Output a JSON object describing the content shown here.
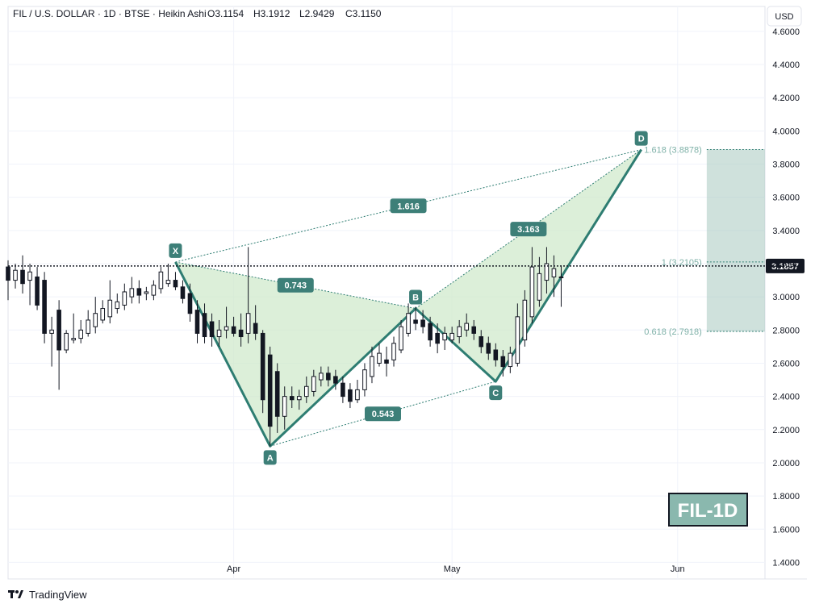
{
  "header": {
    "symbol_line": "FIL / U.S. DOLLAR · 1D · BTSE · Heikin Ashi",
    "ohlc": [
      {
        "label": "O",
        "value": "3.1154"
      },
      {
        "label": "H",
        "value": "3.1912"
      },
      {
        "label": "L",
        "value": "2.9429"
      },
      {
        "label": "C",
        "value": "3.1150"
      }
    ]
  },
  "currency_button": "USD",
  "watermark": "FIL-1D",
  "footer_brand": "TradingView",
  "colors": {
    "candle": "#131722",
    "pattern_stroke": "#2e7d72",
    "pattern_fill": "#cde8c9",
    "label_bg": "#3d7f78",
    "zone_fill": "#a7c9c0",
    "fib_text": "#7fb1a8",
    "price_tag_bg": "#131722",
    "watermark_bg": "#8ab8ae"
  },
  "chart_data": {
    "type": "candlestick",
    "style": "Heikin Ashi",
    "price_axis": {
      "ylim": [
        1.3,
        4.75
      ],
      "ticks": [
        "4.6000",
        "4.4000",
        "4.2000",
        "4.0000",
        "3.8000",
        "3.6000",
        "3.4000",
        "3.2000",
        "3.0000",
        "2.8000",
        "2.6000",
        "2.4000",
        "2.2000",
        "2.0000",
        "1.8000",
        "1.6000",
        "1.4000"
      ]
    },
    "time_axis": {
      "xlim": [
        "2024-03-01",
        "2024-06-13"
      ],
      "ticks": [
        {
          "label": "Apr",
          "date": "2024-04-01"
        },
        {
          "label": "May",
          "date": "2024-05-01"
        },
        {
          "label": "Jun",
          "date": "2024-06-01"
        }
      ]
    },
    "current_price": {
      "value": 3.1857,
      "label": "3.1857"
    },
    "candles": [
      {
        "date": "2024-03-01",
        "o": 3.18,
        "h": 3.22,
        "l": 2.98,
        "c": 3.1
      },
      {
        "date": "2024-03-02",
        "o": 3.1,
        "h": 3.2,
        "l": 3.05,
        "c": 3.16
      },
      {
        "date": "2024-03-03",
        "o": 3.16,
        "h": 3.25,
        "l": 3.02,
        "c": 3.08
      },
      {
        "date": "2024-03-04",
        "o": 3.1,
        "h": 3.2,
        "l": 2.95,
        "c": 3.15
      },
      {
        "date": "2024-03-05",
        "o": 3.12,
        "h": 3.18,
        "l": 2.92,
        "c": 2.95
      },
      {
        "date": "2024-03-06",
        "o": 3.1,
        "h": 3.15,
        "l": 2.72,
        "c": 2.78
      },
      {
        "date": "2024-03-07",
        "o": 2.78,
        "h": 2.88,
        "l": 2.58,
        "c": 2.8
      },
      {
        "date": "2024-03-08",
        "o": 2.92,
        "h": 2.98,
        "l": 2.44,
        "c": 2.68
      },
      {
        "date": "2024-03-09",
        "o": 2.68,
        "h": 2.8,
        "l": 2.66,
        "c": 2.78
      },
      {
        "date": "2024-03-10",
        "o": 2.74,
        "h": 2.9,
        "l": 2.72,
        "c": 2.75
      },
      {
        "date": "2024-03-11",
        "o": 2.75,
        "h": 2.86,
        "l": 2.72,
        "c": 2.8
      },
      {
        "date": "2024-03-12",
        "o": 2.78,
        "h": 2.92,
        "l": 2.76,
        "c": 2.86
      },
      {
        "date": "2024-03-13",
        "o": 2.82,
        "h": 3.0,
        "l": 2.78,
        "c": 2.9
      },
      {
        "date": "2024-03-14",
        "o": 2.86,
        "h": 2.98,
        "l": 2.84,
        "c": 2.93
      },
      {
        "date": "2024-03-15",
        "o": 2.88,
        "h": 3.1,
        "l": 2.84,
        "c": 2.98
      },
      {
        "date": "2024-03-16",
        "o": 2.93,
        "h": 3.02,
        "l": 2.9,
        "c": 2.97
      },
      {
        "date": "2024-03-17",
        "o": 2.95,
        "h": 3.08,
        "l": 2.92,
        "c": 3.03
      },
      {
        "date": "2024-03-18",
        "o": 3.0,
        "h": 3.12,
        "l": 2.96,
        "c": 3.05
      },
      {
        "date": "2024-03-19",
        "o": 3.05,
        "h": 3.1,
        "l": 2.96,
        "c": 3.01
      },
      {
        "date": "2024-03-20",
        "o": 3.02,
        "h": 3.06,
        "l": 2.98,
        "c": 3.03
      },
      {
        "date": "2024-03-21",
        "o": 3.01,
        "h": 3.1,
        "l": 2.98,
        "c": 3.07
      },
      {
        "date": "2024-03-22",
        "o": 3.05,
        "h": 3.18,
        "l": 3.02,
        "c": 3.15
      },
      {
        "date": "2024-03-23",
        "o": 3.08,
        "h": 3.2,
        "l": 3.06,
        "c": 3.1
      },
      {
        "date": "2024-03-24",
        "o": 3.1,
        "h": 3.15,
        "l": 3.04,
        "c": 3.06
      },
      {
        "date": "2024-03-25",
        "o": 3.06,
        "h": 3.1,
        "l": 2.96,
        "c": 2.99
      },
      {
        "date": "2024-03-26",
        "o": 3.02,
        "h": 3.08,
        "l": 2.85,
        "c": 2.9
      },
      {
        "date": "2024-03-27",
        "o": 2.92,
        "h": 2.98,
        "l": 2.72,
        "c": 2.78
      },
      {
        "date": "2024-03-28",
        "o": 2.9,
        "h": 2.96,
        "l": 2.72,
        "c": 2.76
      },
      {
        "date": "2024-03-29",
        "o": 2.85,
        "h": 2.9,
        "l": 2.7,
        "c": 2.76
      },
      {
        "date": "2024-03-30",
        "o": 2.76,
        "h": 2.86,
        "l": 2.7,
        "c": 2.8
      },
      {
        "date": "2024-03-31",
        "o": 2.8,
        "h": 2.94,
        "l": 2.75,
        "c": 2.82
      },
      {
        "date": "2024-04-01",
        "o": 2.82,
        "h": 2.88,
        "l": 2.76,
        "c": 2.78
      },
      {
        "date": "2024-04-02",
        "o": 2.8,
        "h": 2.9,
        "l": 2.7,
        "c": 2.76
      },
      {
        "date": "2024-04-03",
        "o": 2.78,
        "h": 3.3,
        "l": 2.72,
        "c": 2.9
      },
      {
        "date": "2024-04-04",
        "o": 2.84,
        "h": 2.95,
        "l": 2.74,
        "c": 2.78
      },
      {
        "date": "2024-04-05",
        "o": 2.78,
        "h": 2.8,
        "l": 2.3,
        "c": 2.38
      },
      {
        "date": "2024-04-06",
        "o": 2.65,
        "h": 2.7,
        "l": 2.1,
        "c": 2.22
      },
      {
        "date": "2024-04-07",
        "o": 2.55,
        "h": 2.6,
        "l": 2.18,
        "c": 2.28
      },
      {
        "date": "2024-04-08",
        "o": 2.28,
        "h": 2.46,
        "l": 2.2,
        "c": 2.4
      },
      {
        "date": "2024-04-09",
        "o": 2.4,
        "h": 2.46,
        "l": 2.33,
        "c": 2.38
      },
      {
        "date": "2024-04-10",
        "o": 2.38,
        "h": 2.44,
        "l": 2.32,
        "c": 2.4
      },
      {
        "date": "2024-04-11",
        "o": 2.4,
        "h": 2.52,
        "l": 2.36,
        "c": 2.46
      },
      {
        "date": "2024-04-12",
        "o": 2.43,
        "h": 2.56,
        "l": 2.4,
        "c": 2.52
      },
      {
        "date": "2024-04-13",
        "o": 2.5,
        "h": 2.58,
        "l": 2.46,
        "c": 2.54
      },
      {
        "date": "2024-04-14",
        "o": 2.54,
        "h": 2.58,
        "l": 2.46,
        "c": 2.5
      },
      {
        "date": "2024-04-15",
        "o": 2.52,
        "h": 2.56,
        "l": 2.44,
        "c": 2.48
      },
      {
        "date": "2024-04-16",
        "o": 2.48,
        "h": 2.52,
        "l": 2.36,
        "c": 2.4
      },
      {
        "date": "2024-04-17",
        "o": 2.44,
        "h": 2.48,
        "l": 2.33,
        "c": 2.37
      },
      {
        "date": "2024-04-18",
        "o": 2.38,
        "h": 2.5,
        "l": 2.36,
        "c": 2.44
      },
      {
        "date": "2024-04-19",
        "o": 2.44,
        "h": 2.6,
        "l": 2.4,
        "c": 2.56
      },
      {
        "date": "2024-04-20",
        "o": 2.52,
        "h": 2.7,
        "l": 2.48,
        "c": 2.64
      },
      {
        "date": "2024-04-21",
        "o": 2.6,
        "h": 2.72,
        "l": 2.58,
        "c": 2.66
      },
      {
        "date": "2024-04-22",
        "o": 2.62,
        "h": 2.7,
        "l": 2.52,
        "c": 2.6
      },
      {
        "date": "2024-04-23",
        "o": 2.62,
        "h": 2.76,
        "l": 2.58,
        "c": 2.72
      },
      {
        "date": "2024-04-24",
        "o": 2.68,
        "h": 2.86,
        "l": 2.66,
        "c": 2.82
      },
      {
        "date": "2024-04-25",
        "o": 2.78,
        "h": 2.96,
        "l": 2.76,
        "c": 2.9
      },
      {
        "date": "2024-04-26",
        "o": 2.86,
        "h": 2.94,
        "l": 2.8,
        "c": 2.84
      },
      {
        "date": "2024-04-27",
        "o": 2.86,
        "h": 2.92,
        "l": 2.78,
        "c": 2.82
      },
      {
        "date": "2024-04-28",
        "o": 2.84,
        "h": 2.88,
        "l": 2.7,
        "c": 2.74
      },
      {
        "date": "2024-04-29",
        "o": 2.78,
        "h": 2.84,
        "l": 2.66,
        "c": 2.72
      },
      {
        "date": "2024-04-30",
        "o": 2.74,
        "h": 2.82,
        "l": 2.68,
        "c": 2.78
      },
      {
        "date": "2024-05-01",
        "o": 2.74,
        "h": 2.82,
        "l": 2.72,
        "c": 2.78
      },
      {
        "date": "2024-05-02",
        "o": 2.76,
        "h": 2.86,
        "l": 2.72,
        "c": 2.82
      },
      {
        "date": "2024-05-03",
        "o": 2.8,
        "h": 2.9,
        "l": 2.76,
        "c": 2.84
      },
      {
        "date": "2024-05-04",
        "o": 2.82,
        "h": 2.86,
        "l": 2.74,
        "c": 2.78
      },
      {
        "date": "2024-05-05",
        "o": 2.76,
        "h": 2.8,
        "l": 2.66,
        "c": 2.7
      },
      {
        "date": "2024-05-06",
        "o": 2.72,
        "h": 2.76,
        "l": 2.62,
        "c": 2.66
      },
      {
        "date": "2024-05-07",
        "o": 2.68,
        "h": 2.72,
        "l": 2.58,
        "c": 2.62
      },
      {
        "date": "2024-05-08",
        "o": 2.64,
        "h": 2.68,
        "l": 2.52,
        "c": 2.58
      },
      {
        "date": "2024-05-09",
        "o": 2.58,
        "h": 2.7,
        "l": 2.54,
        "c": 2.66
      },
      {
        "date": "2024-05-10",
        "o": 2.6,
        "h": 2.96,
        "l": 2.58,
        "c": 2.88
      },
      {
        "date": "2024-05-11",
        "o": 2.74,
        "h": 3.04,
        "l": 2.7,
        "c": 2.98
      },
      {
        "date": "2024-05-12",
        "o": 2.88,
        "h": 3.3,
        "l": 2.84,
        "c": 3.18
      },
      {
        "date": "2024-05-13",
        "o": 2.98,
        "h": 3.24,
        "l": 2.94,
        "c": 3.14
      },
      {
        "date": "2024-05-14",
        "o": 3.1,
        "h": 3.3,
        "l": 3.02,
        "c": 3.2
      },
      {
        "date": "2024-05-15",
        "o": 3.12,
        "h": 3.25,
        "l": 3.0,
        "c": 3.17
      },
      {
        "date": "2024-05-16",
        "o": 3.12,
        "h": 3.19,
        "l": 2.94,
        "c": 3.12
      }
    ],
    "harmonic_pattern": {
      "points": [
        {
          "label": "X",
          "date": "2024-03-24",
          "price": 3.21
        },
        {
          "label": "A",
          "date": "2024-04-06",
          "price": 2.1
        },
        {
          "label": "B",
          "date": "2024-04-26",
          "price": 2.93
        },
        {
          "label": "C",
          "date": "2024-05-07",
          "price": 2.49
        },
        {
          "label": "D",
          "date": "2024-05-27",
          "price": 3.887
        }
      ],
      "ratios": [
        {
          "label": "0.743",
          "from": "X",
          "to": "B"
        },
        {
          "label": "0.543",
          "from": "A",
          "to": "C"
        },
        {
          "label": "3.163",
          "from": "B",
          "to": "D"
        },
        {
          "label": "1.616",
          "from": "X",
          "to": "D"
        }
      ]
    },
    "fib_levels": [
      {
        "label": "1.618 (3.8878)",
        "value": 3.8878
      },
      {
        "label": "1 (3.2105)",
        "value": 3.2105
      },
      {
        "label": "0.618 (2.7918)",
        "value": 2.7918
      }
    ],
    "target_zone": {
      "from": 2.7918,
      "to": 3.8878,
      "start_date": "2024-06-05",
      "end_date": "2024-06-13"
    }
  }
}
